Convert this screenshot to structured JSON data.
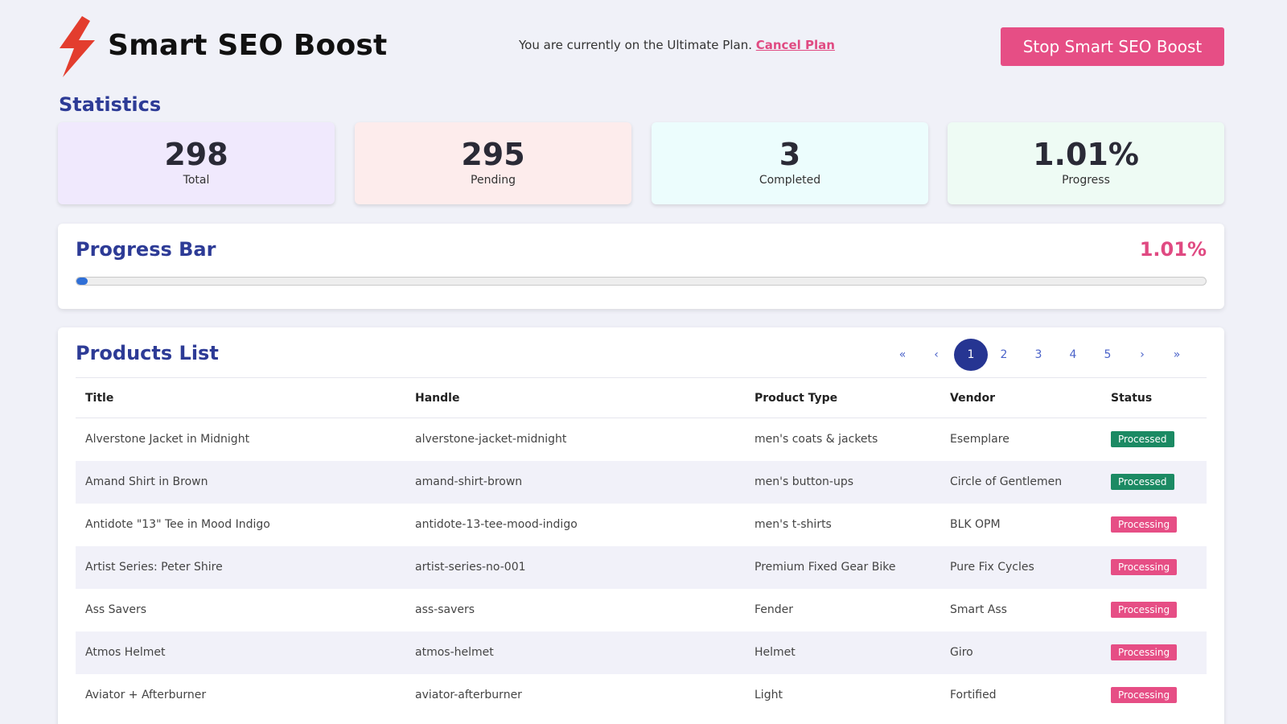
{
  "header": {
    "app_title": "Smart SEO Boost",
    "plan_text": "You are currently on the Ultimate Plan.",
    "cancel_label": "Cancel Plan",
    "stop_label": "Stop Smart SEO Boost",
    "logo_icon": "lightning-bolt-icon",
    "logo_color": "#e33d2e"
  },
  "statistics": {
    "title": "Statistics",
    "cards": [
      {
        "value": "298",
        "label": "Total"
      },
      {
        "value": "295",
        "label": "Pending"
      },
      {
        "value": "3",
        "label": "Completed"
      },
      {
        "value": "1.01%",
        "label": "Progress"
      }
    ]
  },
  "progress": {
    "title": "Progress Bar",
    "percent_label": "1.01%",
    "fill_percent": 1.01
  },
  "products": {
    "title": "Products List",
    "pagination": {
      "first": "«",
      "prev": "‹",
      "next": "›",
      "last": "»",
      "pages": [
        "1",
        "2",
        "3",
        "4",
        "5"
      ],
      "current": "1"
    },
    "columns": [
      "Title",
      "Handle",
      "Product Type",
      "Vendor",
      "Status"
    ],
    "rows": [
      {
        "title": "Alverstone Jacket in Midnight",
        "handle": "alverstone-jacket-midnight",
        "type": "men's coats & jackets",
        "vendor": "Esemplare",
        "status": "Processed"
      },
      {
        "title": "Amand Shirt in Brown",
        "handle": "amand-shirt-brown",
        "type": "men's button-ups",
        "vendor": "Circle of Gentlemen",
        "status": "Processed"
      },
      {
        "title": "Antidote \"13\" Tee in Mood Indigo",
        "handle": "antidote-13-tee-mood-indigo",
        "type": "men's t-shirts",
        "vendor": "BLK OPM",
        "status": "Processing"
      },
      {
        "title": "Artist Series: Peter Shire",
        "handle": "artist-series-no-001",
        "type": "Premium Fixed Gear Bike",
        "vendor": "Pure Fix Cycles",
        "status": "Processing"
      },
      {
        "title": "Ass Savers",
        "handle": "ass-savers",
        "type": "Fender",
        "vendor": "Smart Ass",
        "status": "Processing"
      },
      {
        "title": "Atmos Helmet",
        "handle": "atmos-helmet",
        "type": "Helmet",
        "vendor": "Giro",
        "status": "Processing"
      },
      {
        "title": "Aviator + Afterburner",
        "handle": "aviator-afterburner",
        "type": "Light",
        "vendor": "Fortified",
        "status": "Processing"
      }
    ]
  },
  "colors": {
    "accent": "#e64e85",
    "heading": "#2d3b96",
    "processed": "#1b8a63",
    "progress_fill": "#2f6fd6"
  }
}
